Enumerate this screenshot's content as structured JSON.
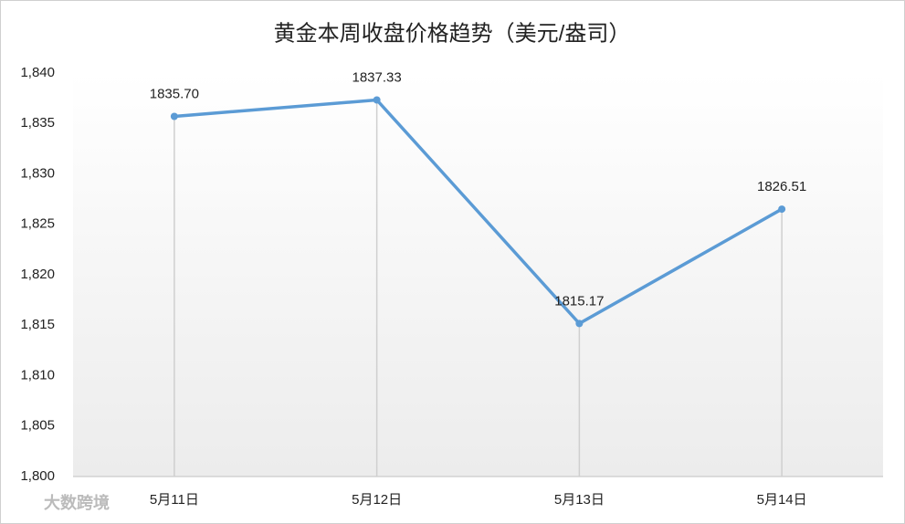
{
  "chart_data": {
    "type": "line",
    "title": "黄金本周收盘价格趋势（美元/盎司）",
    "categories": [
      "5月11日",
      "5月12日",
      "5月13日",
      "5月14日"
    ],
    "values": [
      1835.7,
      1837.33,
      1815.17,
      1826.51
    ],
    "value_labels": [
      "1835.70",
      "1837.33",
      "1815.17",
      "1826.51"
    ],
    "color": "#5b9bd5",
    "ylim": [
      1800,
      1840
    ],
    "yticks": [
      {
        "value": 1800,
        "label": "1,800"
      },
      {
        "value": 1805,
        "label": "1,805"
      },
      {
        "value": 1810,
        "label": "1,810"
      },
      {
        "value": 1815,
        "label": "1,815"
      },
      {
        "value": 1820,
        "label": "1,820"
      },
      {
        "value": 1825,
        "label": "1,825"
      },
      {
        "value": 1830,
        "label": "1,830"
      },
      {
        "value": 1835,
        "label": "1,835"
      },
      {
        "value": 1840,
        "label": "1,840"
      }
    ],
    "drop_lines": true,
    "watermark": "大数跨境"
  }
}
